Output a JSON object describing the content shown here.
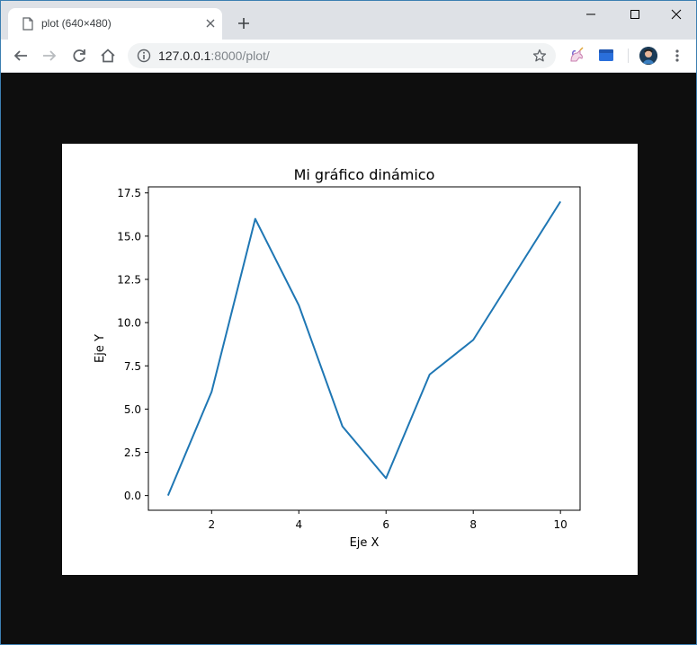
{
  "browser": {
    "tab_title": "plot (640×480)",
    "url_host": "127.0.0.1",
    "url_path": ":8000/plot/"
  },
  "icons": {
    "tab": "page-icon",
    "close": "close-icon",
    "new_tab": "plus-icon",
    "back": "back-arrow-icon",
    "forward": "forward-arrow-icon",
    "reload": "reload-icon",
    "home": "home-icon",
    "info": "info-icon",
    "bookmark": "star-icon",
    "extension_1": "unicorn-extension-icon",
    "extension_2": "folder-extension-icon",
    "profile": "avatar",
    "menu": "kebab-menu-icon"
  },
  "chart_data": {
    "type": "line",
    "title": "Mi gráfico dinámico",
    "xlabel": "Eje X",
    "ylabel": "Eje Y",
    "x": [
      1,
      2,
      3,
      4,
      5,
      6,
      7,
      8,
      9,
      10
    ],
    "series": [
      {
        "values": [
          0,
          6,
          16,
          11,
          4,
          1,
          7,
          9,
          13,
          17
        ],
        "color": "#1f77b4"
      }
    ],
    "xlim": [
      0.55,
      10.45
    ],
    "ylim": [
      -0.85,
      17.85
    ],
    "xticks": [
      2,
      4,
      6,
      8,
      10
    ],
    "xtick_labels": [
      "2",
      "4",
      "6",
      "8",
      "10"
    ],
    "yticks": [
      0,
      2.5,
      5,
      7.5,
      10,
      12.5,
      15,
      17.5
    ],
    "ytick_labels": [
      "0.0",
      "2.5",
      "5.0",
      "7.5",
      "10.0",
      "12.5",
      "15.0",
      "17.5"
    ],
    "grid": false,
    "legend": false
  }
}
